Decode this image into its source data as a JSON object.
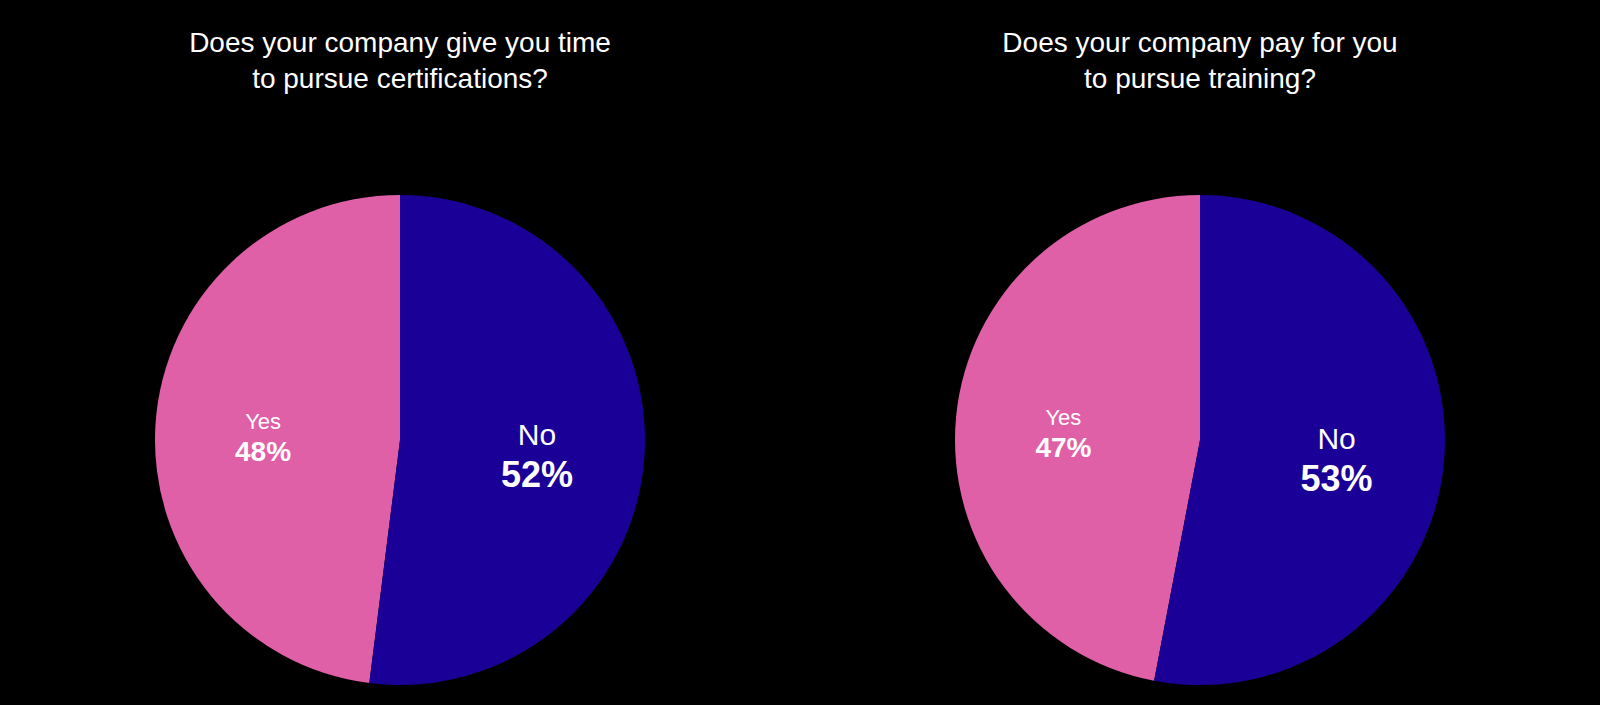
{
  "chart_data": [
    {
      "type": "pie",
      "title": "Does your company give you time\nto pursue certifications?",
      "categories": [
        "Yes",
        "No"
      ],
      "values": [
        48,
        52
      ],
      "value_labels": [
        "48%",
        "52%"
      ],
      "colors": [
        "#e060a8",
        "#1a0096"
      ],
      "data_labels": true
    },
    {
      "type": "pie",
      "title": "Does your company pay for you\nto pursue training?",
      "categories": [
        "Yes",
        "No"
      ],
      "values": [
        47,
        53
      ],
      "value_labels": [
        "47%",
        "53%"
      ],
      "colors": [
        "#e060a8",
        "#1a0096"
      ],
      "data_labels": true
    }
  ]
}
